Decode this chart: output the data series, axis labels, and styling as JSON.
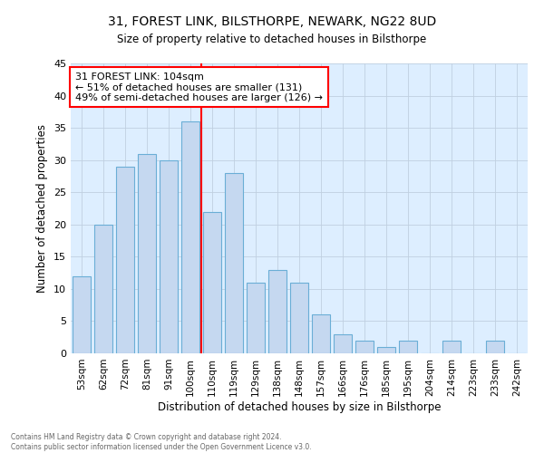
{
  "title1": "31, FOREST LINK, BILSTHORPE, NEWARK, NG22 8UD",
  "title2": "Size of property relative to detached houses in Bilsthorpe",
  "xlabel": "Distribution of detached houses by size in Bilsthorpe",
  "ylabel": "Number of detached properties",
  "footer1": "Contains HM Land Registry data © Crown copyright and database right 2024.",
  "footer2": "Contains public sector information licensed under the Open Government Licence v3.0.",
  "categories": [
    "53sqm",
    "62sqm",
    "72sqm",
    "81sqm",
    "91sqm",
    "100sqm",
    "110sqm",
    "119sqm",
    "129sqm",
    "138sqm",
    "148sqm",
    "157sqm",
    "166sqm",
    "176sqm",
    "185sqm",
    "195sqm",
    "204sqm",
    "214sqm",
    "223sqm",
    "233sqm",
    "242sqm"
  ],
  "values": [
    12,
    20,
    29,
    31,
    30,
    36,
    22,
    28,
    11,
    13,
    11,
    6,
    3,
    2,
    1,
    2,
    0,
    2,
    0,
    2,
    0
  ],
  "bar_color": "#c5d8f0",
  "bar_edge_color": "#6aaed6",
  "vline_x": 5.5,
  "vline_color": "red",
  "annotation_title": "31 FOREST LINK: 104sqm",
  "annotation_line2": "← 51% of detached houses are smaller (131)",
  "annotation_line3": "49% of semi-detached houses are larger (126) →",
  "annotation_box_color": "white",
  "annotation_box_edgecolor": "red",
  "ylim": [
    0,
    45
  ],
  "yticks": [
    0,
    5,
    10,
    15,
    20,
    25,
    30,
    35,
    40,
    45
  ],
  "grid_color": "#c0d0e0",
  "background_color": "#ddeeff"
}
